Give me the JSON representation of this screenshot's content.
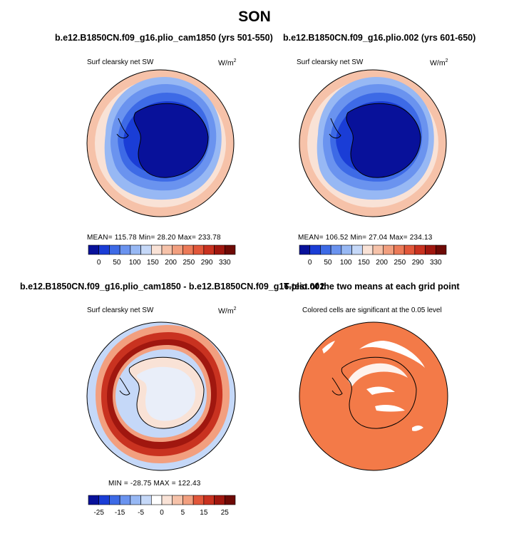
{
  "figure": {
    "title": "SON"
  },
  "panels": [
    {
      "id": "case1",
      "title": "b.e12.B1850CN.f09_g16.plio_cam1850 (yrs 501-550)",
      "left_label": "Surf clearsky net SW",
      "unit_base": "W/m",
      "unit_sup": "2",
      "stats": "MEAN= 115.78  Min=  28.20  Max= 233.78",
      "colorbar": {
        "colors": [
          "#08119a",
          "#1a3dd6",
          "#3d6ae6",
          "#6a93ef",
          "#97b8f4",
          "#c5d8f8",
          "#f9e2d6",
          "#f6c2a9",
          "#f29f7f",
          "#ec7a58",
          "#e2573a",
          "#c93220",
          "#a0170f",
          "#6e0a05"
        ],
        "tick_labels": [
          "0",
          "50",
          "100",
          "150",
          "200",
          "250",
          "290",
          "330"
        ]
      }
    },
    {
      "id": "case2",
      "title": "b.e12.B1850CN.f09_g16.plio.002 (yrs 601-650)",
      "left_label": "Surf clearsky net SW",
      "unit_base": "W/m",
      "unit_sup": "2",
      "stats": "MEAN= 106.52  Min=  27.04  Max= 234.13",
      "colorbar": {
        "colors": [
          "#08119a",
          "#1a3dd6",
          "#3d6ae6",
          "#6a93ef",
          "#97b8f4",
          "#c5d8f8",
          "#f9e2d6",
          "#f6c2a9",
          "#f29f7f",
          "#ec7a58",
          "#e2573a",
          "#c93220",
          "#a0170f",
          "#6e0a05"
        ],
        "tick_labels": [
          "0",
          "50",
          "100",
          "150",
          "200",
          "250",
          "290",
          "330"
        ]
      }
    },
    {
      "id": "diff",
      "title": "b.e12.B1850CN.f09_g16.plio_cam1850 - b.e12.B1850CN.f09_g16.plio.002",
      "left_label": "Surf clearsky net SW",
      "unit_base": "W/m",
      "unit_sup": "2",
      "stats": "MIN = -28.75  MAX = 122.43",
      "colorbar": {
        "colors": [
          "#08119a",
          "#1a3dd6",
          "#3d6ae6",
          "#6a93ef",
          "#97b8f4",
          "#c5d8f8",
          "#ffffff",
          "#f9e2d6",
          "#f6c2a9",
          "#f29f7f",
          "#e2573a",
          "#c93220",
          "#a0170f",
          "#6e0a05"
        ],
        "tick_labels": [
          "-25",
          "-15",
          "-5",
          "0",
          "5",
          "15",
          "25"
        ]
      }
    },
    {
      "id": "ttest",
      "title": "T-test of the two means at each grid point",
      "left_label": "Colored cells are significant at the 0.05 level",
      "significant_color": "#f37a48"
    }
  ]
}
